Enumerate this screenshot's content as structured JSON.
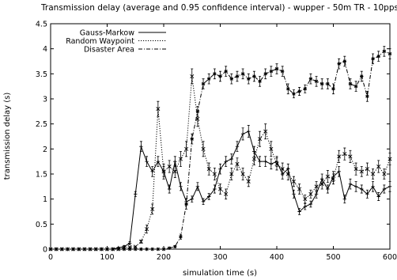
{
  "chart_data": {
    "type": "line",
    "title": "Transmission delay (average and 0.95 confidence interval) - wupper - 50m TR - 10pps",
    "xlabel": "simulation time (s)",
    "ylabel": "transmission delay (s)",
    "xlim": [
      0,
      600
    ],
    "ylim": [
      0,
      4.5
    ],
    "xticks": [
      0,
      100,
      200,
      300,
      400,
      500,
      600
    ],
    "yticks": [
      0,
      0.5,
      1,
      1.5,
      2,
      2.5,
      3,
      3.5,
      4,
      4.5
    ],
    "xtick_labels": [
      "0",
      "100",
      "200",
      "300",
      "400",
      "500",
      "600"
    ],
    "ytick_labels": [
      "0",
      "0.5",
      "1",
      "1.5",
      "2",
      "2.5",
      "3",
      "3.5",
      "4",
      "4.5"
    ],
    "grid": false,
    "legend_position": "top-left",
    "error_bars": "0.95 confidence interval",
    "series": [
      {
        "name": "Gauss-Markow",
        "style": "solid",
        "marker": "plus",
        "color": "#000000",
        "x": [
          0,
          10,
          20,
          30,
          40,
          50,
          60,
          70,
          80,
          90,
          100,
          110,
          120,
          130,
          140,
          150,
          160,
          170,
          180,
          190,
          200,
          210,
          220,
          230,
          240,
          250,
          260,
          270,
          280,
          290,
          300,
          310,
          320,
          330,
          340,
          350,
          360,
          370,
          380,
          390,
          400,
          410,
          420,
          430,
          440,
          450,
          460,
          470,
          480,
          490,
          500,
          510,
          520,
          530,
          540,
          550,
          560,
          570,
          580,
          590,
          600
        ],
        "y": [
          0,
          0,
          0,
          0,
          0,
          0,
          0,
          0,
          0,
          0,
          0,
          0,
          0.03,
          0.05,
          0.12,
          1.1,
          2.05,
          1.75,
          1.55,
          1.75,
          1.55,
          1.2,
          1.75,
          1.25,
          0.95,
          1.0,
          1.25,
          0.95,
          1.05,
          1.2,
          1.6,
          1.75,
          1.8,
          2.05,
          2.3,
          2.35,
          1.95,
          1.75,
          1.75,
          1.7,
          1.75,
          1.5,
          1.6,
          1.1,
          0.75,
          0.85,
          0.9,
          1.1,
          1.4,
          1.2,
          1.45,
          1.55,
          1.0,
          1.3,
          1.25,
          1.2,
          1.1,
          1.25,
          1.05,
          1.2,
          1.25
        ],
        "err": [
          0,
          0,
          0,
          0,
          0,
          0,
          0,
          0,
          0,
          0,
          0,
          0,
          0.01,
          0.02,
          0.03,
          0.05,
          0.1,
          0.1,
          0.1,
          0.1,
          0.1,
          0.08,
          0.1,
          0.08,
          0.06,
          0.06,
          0.08,
          0.06,
          0.06,
          0.08,
          0.1,
          0.1,
          0.1,
          0.1,
          0.12,
          0.12,
          0.1,
          0.1,
          0.1,
          0.1,
          0.1,
          0.1,
          0.1,
          0.08,
          0.06,
          0.06,
          0.06,
          0.08,
          0.1,
          0.08,
          0.1,
          0.1,
          0.08,
          0.1,
          0.1,
          0.08,
          0.08,
          0.1,
          0.08,
          0.08,
          0.1
        ]
      },
      {
        "name": "Random Waypoint",
        "style": "dotted",
        "marker": "x",
        "color": "#000000",
        "x": [
          0,
          10,
          20,
          30,
          40,
          50,
          60,
          70,
          80,
          90,
          100,
          110,
          120,
          130,
          140,
          150,
          160,
          170,
          180,
          190,
          200,
          210,
          220,
          230,
          240,
          250,
          260,
          270,
          280,
          290,
          300,
          310,
          320,
          330,
          340,
          350,
          360,
          370,
          380,
          390,
          400,
          410,
          420,
          430,
          440,
          450,
          460,
          470,
          480,
          490,
          500,
          510,
          520,
          530,
          540,
          550,
          560,
          570,
          580,
          590,
          600
        ],
        "y": [
          0,
          0,
          0,
          0,
          0,
          0,
          0,
          0,
          0,
          0,
          0,
          0,
          0,
          0.03,
          0.04,
          0.05,
          0.15,
          0.4,
          0.8,
          2.8,
          1.55,
          1.65,
          1.55,
          1.8,
          2.0,
          3.45,
          2.6,
          2.0,
          1.6,
          1.5,
          1.2,
          1.1,
          1.5,
          1.7,
          1.5,
          1.35,
          1.8,
          2.2,
          2.35,
          2.0,
          1.7,
          1.6,
          1.5,
          1.35,
          1.2,
          1.0,
          1.1,
          1.25,
          1.3,
          1.45,
          1.4,
          1.85,
          1.9,
          1.85,
          1.6,
          1.55,
          1.6,
          1.5,
          1.65,
          1.5,
          1.8
        ],
        "err": [
          0,
          0,
          0,
          0,
          0,
          0,
          0,
          0,
          0,
          0,
          0,
          0,
          0,
          0.01,
          0.01,
          0.01,
          0.03,
          0.08,
          0.1,
          0.15,
          0.15,
          0.12,
          0.12,
          0.15,
          0.15,
          0.15,
          0.15,
          0.15,
          0.12,
          0.12,
          0.1,
          0.1,
          0.12,
          0.12,
          0.12,
          0.1,
          0.12,
          0.15,
          0.15,
          0.15,
          0.12,
          0.12,
          0.12,
          0.1,
          0.1,
          0.08,
          0.08,
          0.1,
          0.1,
          0.12,
          0.1,
          0.12,
          0.12,
          0.12,
          0.12,
          0.1,
          0.12,
          0.1,
          0.12,
          0.1,
          0.12
        ]
      },
      {
        "name": "Disaster Area",
        "style": "dashdot",
        "marker": "asterisk",
        "color": "#000000",
        "x": [
          0,
          10,
          20,
          30,
          40,
          50,
          60,
          70,
          80,
          90,
          100,
          110,
          120,
          130,
          140,
          150,
          160,
          170,
          180,
          190,
          200,
          210,
          220,
          230,
          240,
          250,
          260,
          270,
          280,
          290,
          300,
          310,
          320,
          330,
          340,
          350,
          360,
          370,
          380,
          390,
          400,
          410,
          420,
          430,
          440,
          450,
          460,
          470,
          480,
          490,
          500,
          510,
          520,
          530,
          540,
          550,
          560,
          570,
          580,
          590,
          600
        ],
        "y": [
          0,
          0,
          0,
          0,
          0,
          0,
          0,
          0,
          0,
          0,
          0,
          0,
          0,
          0,
          0,
          0,
          0,
          0,
          0,
          0,
          0,
          0.02,
          0.05,
          0.25,
          0.9,
          2.2,
          2.75,
          3.3,
          3.4,
          3.5,
          3.45,
          3.55,
          3.4,
          3.45,
          3.5,
          3.4,
          3.45,
          3.35,
          3.5,
          3.55,
          3.6,
          3.55,
          3.2,
          3.1,
          3.15,
          3.2,
          3.4,
          3.35,
          3.3,
          3.3,
          3.2,
          3.7,
          3.75,
          3.3,
          3.25,
          3.45,
          3.05,
          3.8,
          3.85,
          3.95,
          3.9
        ],
        "err": [
          0,
          0,
          0,
          0,
          0,
          0,
          0,
          0,
          0,
          0,
          0,
          0,
          0,
          0,
          0,
          0,
          0,
          0,
          0,
          0,
          0,
          0.01,
          0.02,
          0.05,
          0.1,
          0.1,
          0.1,
          0.1,
          0.1,
          0.1,
          0.1,
          0.1,
          0.1,
          0.1,
          0.1,
          0.1,
          0.1,
          0.1,
          0.1,
          0.1,
          0.1,
          0.1,
          0.1,
          0.08,
          0.08,
          0.08,
          0.1,
          0.1,
          0.1,
          0.1,
          0.1,
          0.1,
          0.1,
          0.1,
          0.1,
          0.1,
          0.1,
          0.1,
          0.1,
          0.1,
          0.1
        ]
      }
    ]
  }
}
